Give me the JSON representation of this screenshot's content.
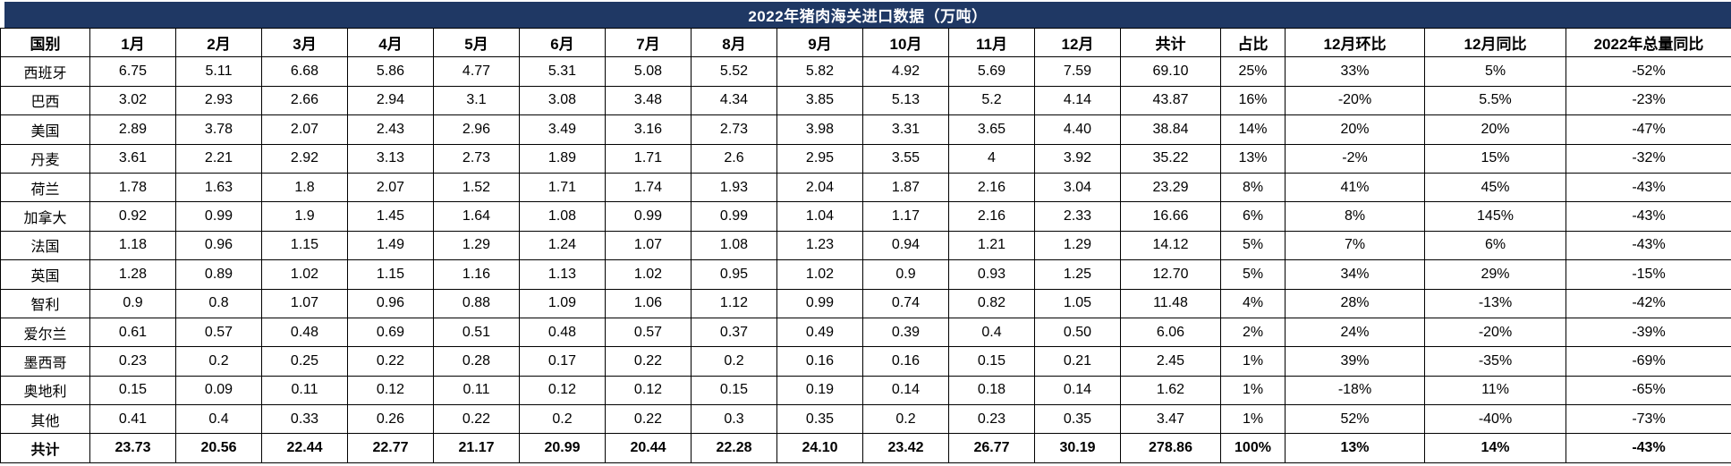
{
  "title": "2022年猪肉海关进口数据（万吨）",
  "colors": {
    "title_bg": "#1f3864",
    "title_text": "#ffffff",
    "grid_border": "#000000",
    "cell_bg": "#ffffff",
    "cell_text": "#000000"
  },
  "chart_data": {
    "type": "table",
    "title": "2022年猪肉海关进口数据（万吨）",
    "columns": [
      "国别",
      "1月",
      "2月",
      "3月",
      "4月",
      "5月",
      "6月",
      "7月",
      "8月",
      "9月",
      "10月",
      "11月",
      "12月",
      "共计",
      "占比",
      "12月环比",
      "12月同比",
      "2022年总量同比"
    ],
    "rows": [
      [
        "西班牙",
        "6.75",
        "5.11",
        "6.68",
        "5.86",
        "4.77",
        "5.31",
        "5.08",
        "5.52",
        "5.82",
        "4.92",
        "5.69",
        "7.59",
        "69.10",
        "25%",
        "33%",
        "5%",
        "-52%"
      ],
      [
        "巴西",
        "3.02",
        "2.93",
        "2.66",
        "2.94",
        "3.1",
        "3.08",
        "3.48",
        "4.34",
        "3.85",
        "5.13",
        "5.2",
        "4.14",
        "43.87",
        "16%",
        "-20%",
        "5.5%",
        "-23%"
      ],
      [
        "美国",
        "2.89",
        "3.78",
        "2.07",
        "2.43",
        "2.96",
        "3.49",
        "3.16",
        "2.73",
        "3.98",
        "3.31",
        "3.65",
        "4.40",
        "38.84",
        "14%",
        "20%",
        "20%",
        "-47%"
      ],
      [
        "丹麦",
        "3.61",
        "2.21",
        "2.92",
        "3.13",
        "2.73",
        "1.89",
        "1.71",
        "2.6",
        "2.95",
        "3.55",
        "4",
        "3.92",
        "35.22",
        "13%",
        "-2%",
        "15%",
        "-32%"
      ],
      [
        "荷兰",
        "1.78",
        "1.63",
        "1.8",
        "2.07",
        "1.52",
        "1.71",
        "1.74",
        "1.93",
        "2.04",
        "1.87",
        "2.16",
        "3.04",
        "23.29",
        "8%",
        "41%",
        "45%",
        "-43%"
      ],
      [
        "加拿大",
        "0.92",
        "0.99",
        "1.9",
        "1.45",
        "1.64",
        "1.08",
        "0.99",
        "0.99",
        "1.04",
        "1.17",
        "2.16",
        "2.33",
        "16.66",
        "6%",
        "8%",
        "145%",
        "-43%"
      ],
      [
        "法国",
        "1.18",
        "0.96",
        "1.15",
        "1.49",
        "1.29",
        "1.24",
        "1.07",
        "1.08",
        "1.23",
        "0.94",
        "1.21",
        "1.29",
        "14.12",
        "5%",
        "7%",
        "6%",
        "-43%"
      ],
      [
        "英国",
        "1.28",
        "0.89",
        "1.02",
        "1.15",
        "1.16",
        "1.13",
        "1.02",
        "0.95",
        "1.02",
        "0.9",
        "0.93",
        "1.25",
        "12.70",
        "5%",
        "34%",
        "29%",
        "-15%"
      ],
      [
        "智利",
        "0.9",
        "0.8",
        "1.07",
        "0.96",
        "0.88",
        "1.09",
        "1.06",
        "1.12",
        "0.99",
        "0.74",
        "0.82",
        "1.05",
        "11.48",
        "4%",
        "28%",
        "-13%",
        "-42%"
      ],
      [
        "爱尔兰",
        "0.61",
        "0.57",
        "0.48",
        "0.69",
        "0.51",
        "0.48",
        "0.57",
        "0.37",
        "0.49",
        "0.39",
        "0.4",
        "0.50",
        "6.06",
        "2%",
        "24%",
        "-20%",
        "-39%"
      ],
      [
        "墨西哥",
        "0.23",
        "0.2",
        "0.25",
        "0.22",
        "0.28",
        "0.17",
        "0.22",
        "0.2",
        "0.16",
        "0.16",
        "0.15",
        "0.21",
        "2.45",
        "1%",
        "39%",
        "-35%",
        "-69%"
      ],
      [
        "奥地利",
        "0.15",
        "0.09",
        "0.11",
        "0.12",
        "0.11",
        "0.12",
        "0.12",
        "0.15",
        "0.19",
        "0.14",
        "0.18",
        "0.14",
        "1.62",
        "1%",
        "-18%",
        "11%",
        "-65%"
      ],
      [
        "其他",
        "0.41",
        "0.4",
        "0.33",
        "0.26",
        "0.22",
        "0.2",
        "0.22",
        "0.3",
        "0.35",
        "0.2",
        "0.23",
        "0.35",
        "3.47",
        "1%",
        "52%",
        "-40%",
        "-73%"
      ]
    ],
    "total_row": [
      "共计",
      "23.73",
      "20.56",
      "22.44",
      "22.77",
      "21.17",
      "20.99",
      "20.44",
      "22.28",
      "24.10",
      "23.42",
      "26.77",
      "30.19",
      "278.86",
      "100%",
      "13%",
      "14%",
      "-43%"
    ]
  }
}
